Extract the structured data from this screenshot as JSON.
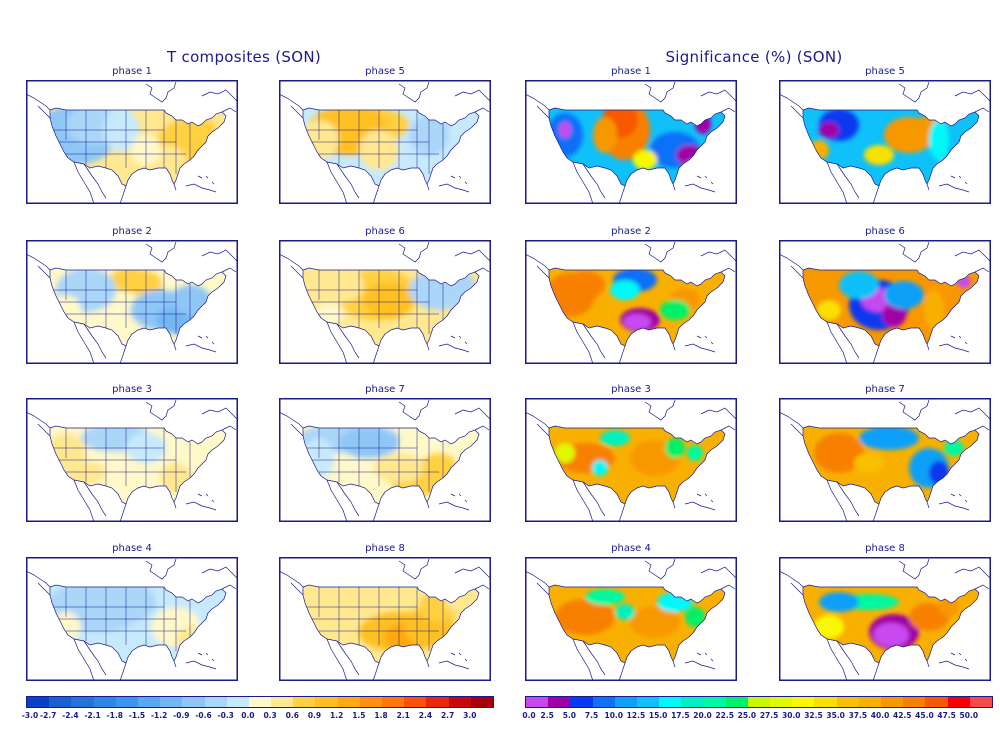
{
  "titles": {
    "left": "T composites (SON)",
    "right": "Significance (%) (SON)"
  },
  "chart_data": [
    {
      "type": "heatmap",
      "title": "T composites (SON)",
      "description": "Temperature anomaly composites over the contiguous US for 8 phases, autumn (SON)",
      "panels": [
        {
          "label": "phase 1",
          "pattern": "cool west (-0.6 to -1.2), warm east/southeast (+0.3 to +0.9)"
        },
        {
          "label": "phase 5",
          "pattern": "warm north-central/west (+0.3 to +0.9), cool east (-0.3 to -0.9)"
        },
        {
          "label": "phase 2",
          "pattern": "warm northern plains (+0.3 to +0.9), cool southeast and west (-0.3 to -1.2)"
        },
        {
          "label": "phase 6",
          "pattern": "warm central plains (+0.3 to +0.9), cool northeast (-0.3 to -0.6)"
        },
        {
          "label": "phase 3",
          "pattern": "weak: cool north-central (-0.3 to -0.6), warm southwest and southeast (+0.3 to +0.6)"
        },
        {
          "label": "phase 7",
          "pattern": "cool north/west (-0.3 to -0.9), warm south/southeast (+0.3 to +0.9)"
        },
        {
          "label": "phase 4",
          "pattern": "cool most of US (-0.3 to -0.9), weak warm southeast (+0.3)"
        },
        {
          "label": "phase 8",
          "pattern": "warm nearly everywhere, strongest south-central/southeast (+0.6 to +1.5)"
        }
      ],
      "colorbar": {
        "levels": [
          -3.0,
          -2.7,
          -2.4,
          -2.1,
          -1.8,
          -1.5,
          -1.2,
          -0.9,
          -0.6,
          -0.3,
          0.0,
          0.3,
          0.6,
          0.9,
          1.2,
          1.5,
          1.8,
          2.1,
          2.4,
          2.7,
          3.0
        ],
        "tick_labels": [
          "-3.0",
          "-2.7",
          "-2.4",
          "-2.1",
          "-1.8",
          "-1.5",
          "-1.2",
          "-0.9",
          "-0.6",
          "-0.3",
          "0.0",
          "0.3",
          "0.6",
          "0.9",
          "1.2",
          "1.5",
          "1.8",
          "2.1",
          "2.4",
          "2.7",
          "3.0"
        ],
        "colors": [
          "#0a3fc8",
          "#1a60d0",
          "#2373d8",
          "#2f86e8",
          "#3d96ee",
          "#58a8f0",
          "#72b6f2",
          "#8ec6f6",
          "#aad6f8",
          "#c6eafc",
          "#fff8c8",
          "#ffe890",
          "#ffd040",
          "#ffc020",
          "#ffa810",
          "#ff9010",
          "#ff7808",
          "#ff5008",
          "#e82808",
          "#c80808",
          "#a80008"
        ]
      }
    },
    {
      "type": "heatmap",
      "title": "Significance (%) (SON)",
      "description": "Statistical significance (%) of temperature composites for 8 phases, autumn (SON)",
      "panels": [
        {
          "label": "phase 1",
          "pattern": "high significance (low %) in west and southeast (0-10%), low significance north-central plains (40-50%)"
        },
        {
          "label": "phase 5",
          "pattern": "significant in northwest interior (0-10%) and Florida, mid/high values elsewhere"
        },
        {
          "label": "phase 2",
          "pattern": "strong significance over Texas/south-central (0-5%), high % across west and east"
        },
        {
          "label": "phase 6",
          "pattern": "strong significance over central plains (0-5%) and northeast, high % west"
        },
        {
          "label": "phase 3",
          "pattern": "mostly 30-50%, scattered 10-25% patches"
        },
        {
          "label": "phase 7",
          "pattern": "significant north-central and southeast (5-15%), high % west and south"
        },
        {
          "label": "phase 4",
          "pattern": "mostly 30-50%, scattered 10-25% patches in north and east"
        },
        {
          "label": "phase 8",
          "pattern": "strong significance over Texas/south-central (0-5%), high % elsewhere"
        }
      ],
      "colorbar": {
        "levels": [
          0.0,
          2.5,
          5.0,
          7.5,
          10.0,
          12.5,
          15.0,
          17.5,
          20.0,
          22.5,
          25.0,
          27.5,
          30.0,
          32.5,
          35.0,
          37.5,
          40.0,
          42.5,
          45.0,
          47.5,
          50.0
        ],
        "tick_labels": [
          "0.0",
          "2.5",
          "5.0",
          "7.5",
          "10.0",
          "12.5",
          "15.0",
          "17.5",
          "20.0",
          "22.5",
          "25.0",
          "27.5",
          "30.0",
          "32.5",
          "35.0",
          "37.5",
          "40.0",
          "42.5",
          "45.0",
          "47.5",
          "50.0"
        ],
        "colors": [
          "#c848f0",
          "#a000a8",
          "#0838f0",
          "#1070f8",
          "#10a0f8",
          "#10c0f8",
          "#00f8f8",
          "#00f0c0",
          "#00f8a0",
          "#00f068",
          "#c8f800",
          "#e0f800",
          "#f8f800",
          "#f8e000",
          "#f8c000",
          "#f8b000",
          "#f89800",
          "#f88000",
          "#f85800",
          "#f80000",
          "#f84848"
        ]
      }
    }
  ]
}
